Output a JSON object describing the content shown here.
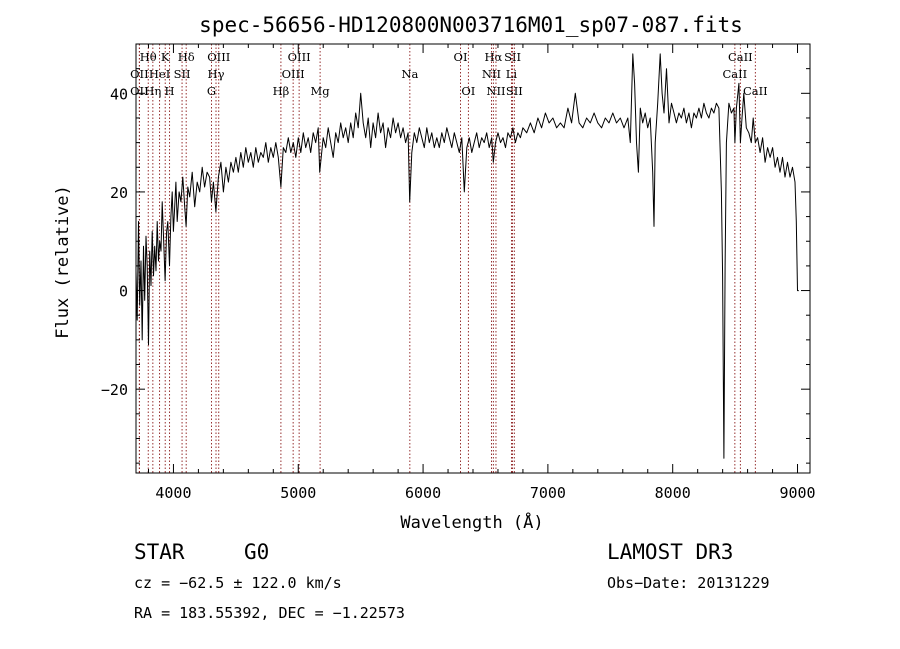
{
  "chart_data": {
    "type": "line",
    "title": "spec-56656-HD120800N003716M01_sp07-087.fits",
    "xlabel": "Wavelength (Å)",
    "ylabel": "Flux (relative)",
    "xlim": [
      3700,
      9100
    ],
    "ylim": [
      -37,
      50
    ],
    "xticks": [
      4000,
      5000,
      6000,
      7000,
      8000,
      9000
    ],
    "xtick_labels": [
      "4000",
      "5000",
      "6000",
      "7000",
      "8000",
      "9000"
    ],
    "yticks": [
      -20,
      0,
      20,
      40
    ],
    "ytick_labels": [
      "−20",
      "0",
      "20",
      "40"
    ],
    "series": [
      {
        "name": "flux",
        "points": [
          [
            3700,
            4
          ],
          [
            3710,
            -6
          ],
          [
            3720,
            14
          ],
          [
            3730,
            -3
          ],
          [
            3740,
            6
          ],
          [
            3750,
            -10
          ],
          [
            3760,
            9
          ],
          [
            3770,
            -2
          ],
          [
            3780,
            11
          ],
          [
            3790,
            5
          ],
          [
            3800,
            -11
          ],
          [
            3810,
            8
          ],
          [
            3820,
            1
          ],
          [
            3830,
            12
          ],
          [
            3840,
            3
          ],
          [
            3850,
            9
          ],
          [
            3860,
            4
          ],
          [
            3870,
            14
          ],
          [
            3880,
            6
          ],
          [
            3890,
            10
          ],
          [
            3900,
            8
          ],
          [
            3910,
            18
          ],
          [
            3920,
            11
          ],
          [
            3933,
            2
          ],
          [
            3945,
            12
          ],
          [
            3955,
            14
          ],
          [
            3968,
            5
          ],
          [
            3980,
            15
          ],
          [
            3990,
            20
          ],
          [
            4000,
            12
          ],
          [
            4010,
            17
          ],
          [
            4020,
            22
          ],
          [
            4030,
            14
          ],
          [
            4045,
            20
          ],
          [
            4060,
            18
          ],
          [
            4075,
            23
          ],
          [
            4090,
            17
          ],
          [
            4101,
            13
          ],
          [
            4115,
            21
          ],
          [
            4130,
            19
          ],
          [
            4150,
            24
          ],
          [
            4170,
            17
          ],
          [
            4190,
            22
          ],
          [
            4210,
            20
          ],
          [
            4230,
            25
          ],
          [
            4250,
            21
          ],
          [
            4270,
            24
          ],
          [
            4290,
            23
          ],
          [
            4305,
            18
          ],
          [
            4320,
            22
          ],
          [
            4340,
            16
          ],
          [
            4360,
            23
          ],
          [
            4380,
            26
          ],
          [
            4400,
            20
          ],
          [
            4420,
            25
          ],
          [
            4440,
            22
          ],
          [
            4460,
            26
          ],
          [
            4480,
            24
          ],
          [
            4500,
            27
          ],
          [
            4520,
            24
          ],
          [
            4540,
            28
          ],
          [
            4560,
            25
          ],
          [
            4580,
            29
          ],
          [
            4600,
            26
          ],
          [
            4620,
            28
          ],
          [
            4640,
            25
          ],
          [
            4660,
            29
          ],
          [
            4680,
            26
          ],
          [
            4700,
            28
          ],
          [
            4720,
            27
          ],
          [
            4740,
            30
          ],
          [
            4760,
            26
          ],
          [
            4780,
            29
          ],
          [
            4800,
            27
          ],
          [
            4820,
            30
          ],
          [
            4840,
            27
          ],
          [
            4861,
            21
          ],
          [
            4880,
            29
          ],
          [
            4900,
            28
          ],
          [
            4920,
            31
          ],
          [
            4940,
            28
          ],
          [
            4960,
            30
          ],
          [
            4980,
            27
          ],
          [
            5000,
            31
          ],
          [
            5020,
            28
          ],
          [
            5040,
            32
          ],
          [
            5060,
            29
          ],
          [
            5080,
            31
          ],
          [
            5100,
            28
          ],
          [
            5120,
            32
          ],
          [
            5140,
            30
          ],
          [
            5160,
            33
          ],
          [
            5172,
            24
          ],
          [
            5184,
            27
          ],
          [
            5200,
            31
          ],
          [
            5220,
            29
          ],
          [
            5240,
            33
          ],
          [
            5260,
            30
          ],
          [
            5280,
            27
          ],
          [
            5300,
            32
          ],
          [
            5320,
            30
          ],
          [
            5340,
            34
          ],
          [
            5360,
            31
          ],
          [
            5380,
            33
          ],
          [
            5400,
            30
          ],
          [
            5420,
            34
          ],
          [
            5440,
            31
          ],
          [
            5460,
            36
          ],
          [
            5480,
            33
          ],
          [
            5500,
            40
          ],
          [
            5520,
            34
          ],
          [
            5540,
            31
          ],
          [
            5560,
            35
          ],
          [
            5580,
            29
          ],
          [
            5600,
            34
          ],
          [
            5620,
            31
          ],
          [
            5640,
            36
          ],
          [
            5660,
            32
          ],
          [
            5680,
            34
          ],
          [
            5700,
            29
          ],
          [
            5720,
            33
          ],
          [
            5740,
            31
          ],
          [
            5760,
            35
          ],
          [
            5780,
            32
          ],
          [
            5800,
            34
          ],
          [
            5820,
            31
          ],
          [
            5840,
            33
          ],
          [
            5860,
            30
          ],
          [
            5880,
            32
          ],
          [
            5893,
            18
          ],
          [
            5910,
            28
          ],
          [
            5930,
            32
          ],
          [
            5950,
            30
          ],
          [
            5970,
            33
          ],
          [
            5990,
            31
          ],
          [
            6010,
            29
          ],
          [
            6030,
            33
          ],
          [
            6050,
            30
          ],
          [
            6070,
            32
          ],
          [
            6090,
            29
          ],
          [
            6110,
            31
          ],
          [
            6130,
            29
          ],
          [
            6150,
            32
          ],
          [
            6170,
            30
          ],
          [
            6190,
            33
          ],
          [
            6210,
            31
          ],
          [
            6230,
            29
          ],
          [
            6250,
            32
          ],
          [
            6270,
            30
          ],
          [
            6290,
            28
          ],
          [
            6310,
            31
          ],
          [
            6330,
            20
          ],
          [
            6350,
            29
          ],
          [
            6370,
            31
          ],
          [
            6390,
            28
          ],
          [
            6410,
            30
          ],
          [
            6430,
            32
          ],
          [
            6450,
            29
          ],
          [
            6470,
            31
          ],
          [
            6490,
            30
          ],
          [
            6510,
            32
          ],
          [
            6530,
            29
          ],
          [
            6550,
            31
          ],
          [
            6563,
            26
          ],
          [
            6580,
            30
          ],
          [
            6600,
            32
          ],
          [
            6620,
            30
          ],
          [
            6640,
            31
          ],
          [
            6660,
            29
          ],
          [
            6680,
            32
          ],
          [
            6700,
            31
          ],
          [
            6720,
            33
          ],
          [
            6740,
            30
          ],
          [
            6760,
            32
          ],
          [
            6780,
            31
          ],
          [
            6800,
            33
          ],
          [
            6830,
            32
          ],
          [
            6860,
            34
          ],
          [
            6890,
            32
          ],
          [
            6920,
            35
          ],
          [
            6950,
            33
          ],
          [
            6980,
            36
          ],
          [
            7010,
            34
          ],
          [
            7040,
            35
          ],
          [
            7070,
            33
          ],
          [
            7100,
            34
          ],
          [
            7130,
            33
          ],
          [
            7160,
            37
          ],
          [
            7190,
            34
          ],
          [
            7220,
            40
          ],
          [
            7250,
            34
          ],
          [
            7280,
            33
          ],
          [
            7310,
            35
          ],
          [
            7340,
            34
          ],
          [
            7370,
            36
          ],
          [
            7400,
            34
          ],
          [
            7430,
            33
          ],
          [
            7460,
            35
          ],
          [
            7490,
            34
          ],
          [
            7520,
            36
          ],
          [
            7550,
            34
          ],
          [
            7580,
            35
          ],
          [
            7610,
            33
          ],
          [
            7640,
            35
          ],
          [
            7660,
            30
          ],
          [
            7680,
            48
          ],
          [
            7695,
            42
          ],
          [
            7710,
            30
          ],
          [
            7725,
            24
          ],
          [
            7740,
            37
          ],
          [
            7760,
            34
          ],
          [
            7780,
            36
          ],
          [
            7800,
            33
          ],
          [
            7820,
            35
          ],
          [
            7840,
            24
          ],
          [
            7850,
            13
          ],
          [
            7860,
            30
          ],
          [
            7880,
            38
          ],
          [
            7900,
            48
          ],
          [
            7915,
            40
          ],
          [
            7930,
            36
          ],
          [
            7950,
            45
          ],
          [
            7970,
            34
          ],
          [
            7990,
            38
          ],
          [
            8010,
            36
          ],
          [
            8030,
            34
          ],
          [
            8050,
            36
          ],
          [
            8070,
            35
          ],
          [
            8090,
            37
          ],
          [
            8110,
            34
          ],
          [
            8130,
            36
          ],
          [
            8150,
            33
          ],
          [
            8170,
            36
          ],
          [
            8190,
            35
          ],
          [
            8210,
            37
          ],
          [
            8230,
            35
          ],
          [
            8250,
            38
          ],
          [
            8270,
            36
          ],
          [
            8290,
            35
          ],
          [
            8310,
            37
          ],
          [
            8330,
            36
          ],
          [
            8350,
            38
          ],
          [
            8370,
            37
          ],
          [
            8390,
            20
          ],
          [
            8400,
            3
          ],
          [
            8410,
            -34
          ],
          [
            8420,
            5
          ],
          [
            8430,
            30
          ],
          [
            8450,
            38
          ],
          [
            8470,
            36
          ],
          [
            8490,
            37
          ],
          [
            8498,
            30
          ],
          [
            8510,
            37
          ],
          [
            8530,
            42
          ],
          [
            8542,
            30
          ],
          [
            8555,
            35
          ],
          [
            8570,
            40
          ],
          [
            8590,
            33
          ],
          [
            8610,
            32
          ],
          [
            8630,
            30
          ],
          [
            8645,
            35
          ],
          [
            8662,
            30
          ],
          [
            8680,
            31
          ],
          [
            8700,
            28
          ],
          [
            8720,
            31
          ],
          [
            8740,
            26
          ],
          [
            8760,
            29
          ],
          [
            8780,
            27
          ],
          [
            8800,
            29
          ],
          [
            8820,
            25
          ],
          [
            8840,
            27
          ],
          [
            8860,
            24
          ],
          [
            8880,
            27
          ],
          [
            8900,
            23
          ],
          [
            8920,
            26
          ],
          [
            8940,
            23
          ],
          [
            8960,
            25
          ],
          [
            8980,
            22
          ],
          [
            8990,
            14
          ],
          [
            9000,
            0
          ],
          [
            9010,
            0
          ]
        ]
      }
    ],
    "line_markers": [
      {
        "label": "Hθ",
        "wavelength": 3798,
        "row": 0
      },
      {
        "label": "OII",
        "wavelength": 3727,
        "row": 1
      },
      {
        "label": "OII",
        "wavelength": 3727,
        "row": 2
      },
      {
        "label": "K",
        "wavelength": 3934,
        "row": 0
      },
      {
        "label": "HeI",
        "wavelength": 3889,
        "row": 1
      },
      {
        "label": "Hη",
        "wavelength": 3835,
        "row": 2
      },
      {
        "label": "SII",
        "wavelength": 4069,
        "row": 1
      },
      {
        "label": "H",
        "wavelength": 3969,
        "row": 2
      },
      {
        "label": "Hδ",
        "wavelength": 4102,
        "row": 0
      },
      {
        "label": "OIII",
        "wavelength": 4363,
        "row": 0
      },
      {
        "label": "Hγ",
        "wavelength": 4341,
        "row": 1
      },
      {
        "label": "G",
        "wavelength": 4305,
        "row": 2
      },
      {
        "label": "OIII",
        "wavelength": 5007,
        "row": 0
      },
      {
        "label": "OIII",
        "wavelength": 4959,
        "row": 1
      },
      {
        "label": "Hβ",
        "wavelength": 4861,
        "row": 2
      },
      {
        "label": "Mg",
        "wavelength": 5175,
        "row": 2
      },
      {
        "label": "Na",
        "wavelength": 5894,
        "row": 1
      },
      {
        "label": "OI",
        "wavelength": 6300,
        "row": 0
      },
      {
        "label": "OI",
        "wavelength": 6363,
        "row": 2
      },
      {
        "label": "Hα",
        "wavelength": 6563,
        "row": 0
      },
      {
        "label": "SII",
        "wavelength": 6717,
        "row": 0
      },
      {
        "label": "NII",
        "wavelength": 6548,
        "row": 1
      },
      {
        "label": "Li",
        "wavelength": 6708,
        "row": 1
      },
      {
        "label": "NII",
        "wavelength": 6584,
        "row": 2
      },
      {
        "label": "SII",
        "wavelength": 6731,
        "row": 2
      },
      {
        "label": "CaII",
        "wavelength": 8542,
        "row": 0
      },
      {
        "label": "CaII",
        "wavelength": 8498,
        "row": 1
      },
      {
        "label": "CaII",
        "wavelength": 8662,
        "row": 2
      }
    ],
    "marker_color": "#8b1a1a"
  },
  "info": {
    "object_class": "STAR",
    "subclass": "G0",
    "survey": "LAMOST DR3",
    "redshift": "cz = −62.5 ± 122.0 km/s",
    "obs_date": "Obs−Date: 20131229",
    "coordinates": "RA = 183.55392, DEC =  −1.22573"
  }
}
